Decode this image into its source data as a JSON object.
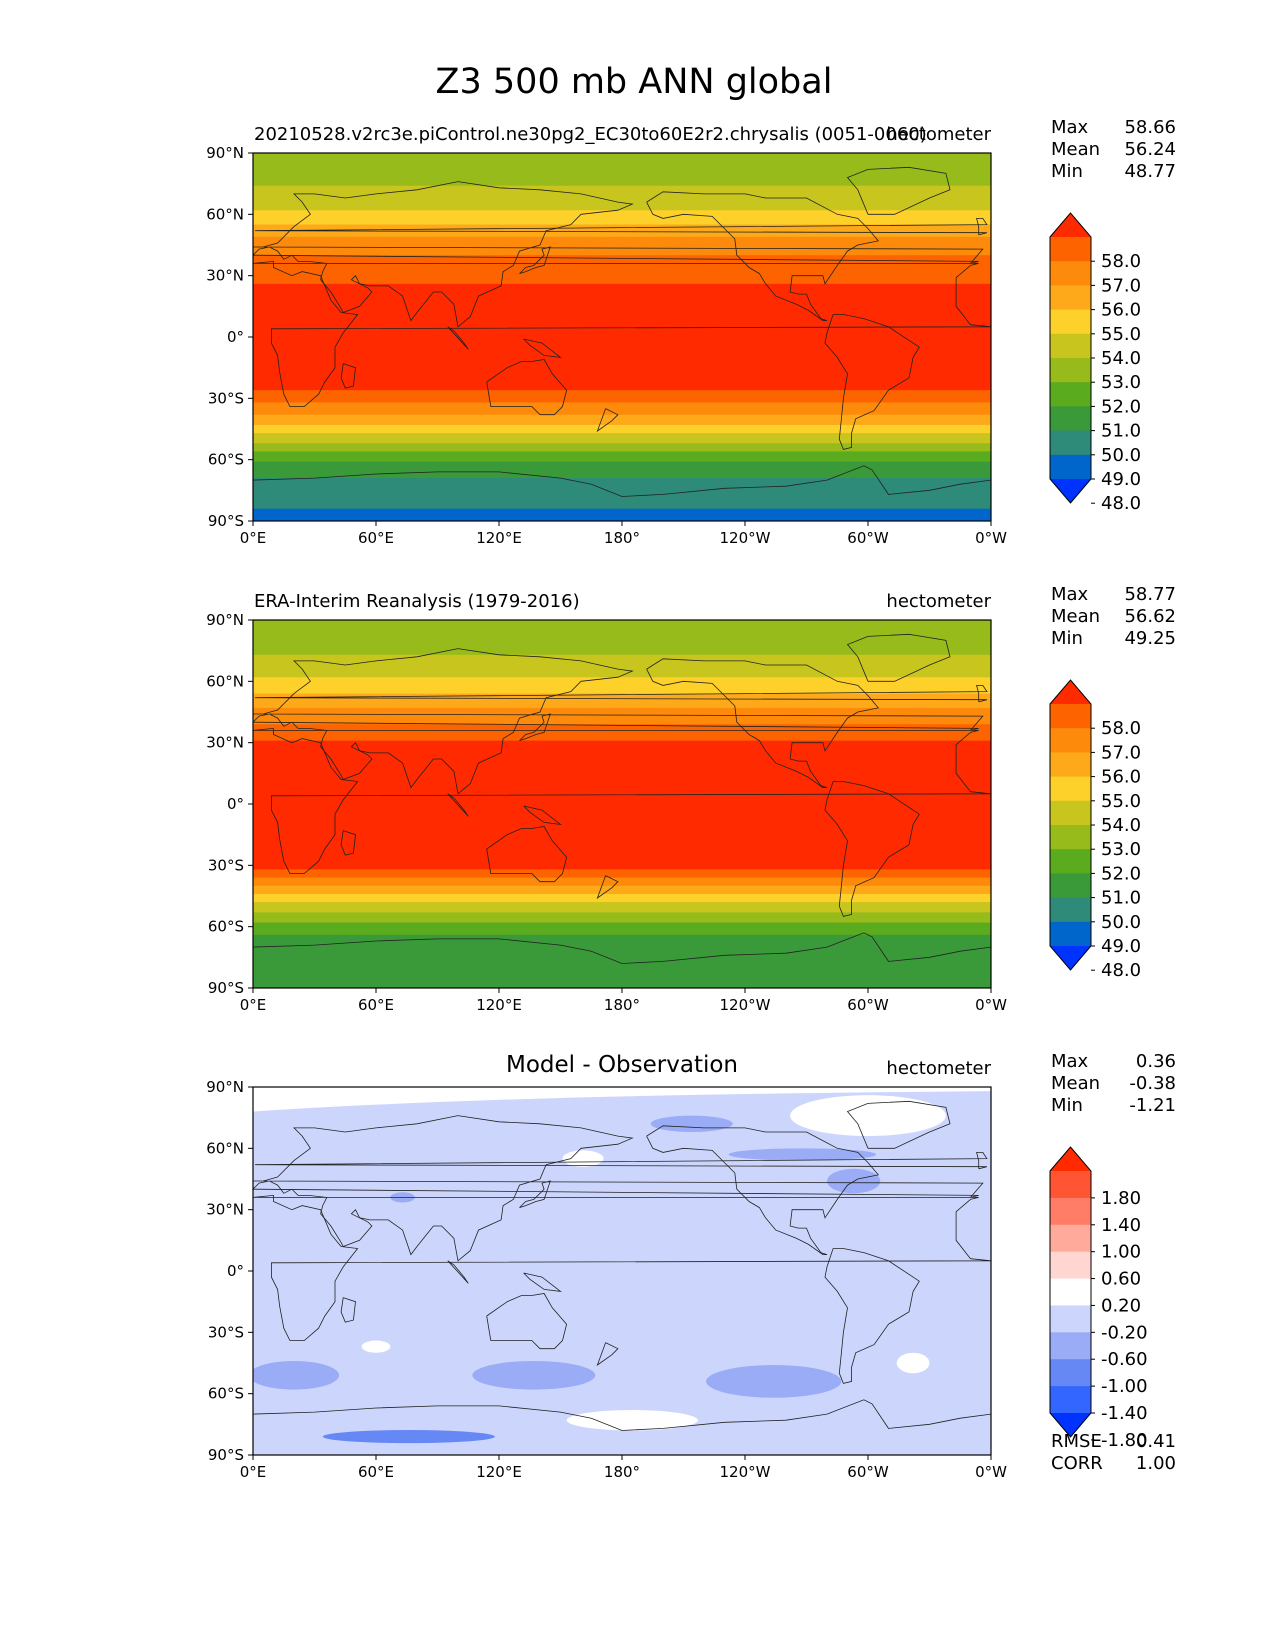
{
  "figure": {
    "title": "Z3 500 mb ANN global"
  },
  "colors": {
    "ref_levels": [
      "#0033ff",
      "#0066cc",
      "#2e8b7a",
      "#3a9a3a",
      "#5aab1e",
      "#96bb1a",
      "#c7c51e",
      "#fdd02a",
      "#fda91a",
      "#fd8a0a",
      "#fd6400",
      "#ff2a00"
    ],
    "diff_levels": [
      "#0033ff",
      "#3366ff",
      "#6688f5",
      "#9aacf6",
      "#ccd6fc",
      "#ffffff",
      "#ffd6d0",
      "#ffaa9a",
      "#ff7d66",
      "#ff5533",
      "#ff2a00"
    ]
  },
  "chart_data": [
    {
      "type": "heatmap",
      "panel": "test",
      "title_left": "20210528.v2rc3e.piControl.ne30pg2_EC30to60E2r2.chrysalis (0051-0060)",
      "title_right": "hectometer",
      "x_ticks": [
        "0°E",
        "60°E",
        "120°E",
        "180°",
        "120°W",
        "60°W",
        "0°W"
      ],
      "y_ticks": [
        "90°N",
        "60°N",
        "30°N",
        "0°",
        "30°S",
        "60°S",
        "90°S"
      ],
      "stats": [
        {
          "label": "Max",
          "value": "58.66"
        },
        {
          "label": "Mean",
          "value": "56.24"
        },
        {
          "label": "Min",
          "value": "48.77"
        }
      ],
      "colorbar_labels": [
        "58.0",
        "57.0",
        "56.0",
        "55.0",
        "54.0",
        "53.0",
        "52.0",
        "51.0",
        "50.0",
        "49.0",
        "48.0"
      ]
    },
    {
      "type": "heatmap",
      "panel": "reference",
      "title_left": "ERA-Interim Reanalysis (1979-2016)",
      "title_right": "hectometer",
      "x_ticks": [
        "0°E",
        "60°E",
        "120°E",
        "180°",
        "120°W",
        "60°W",
        "0°W"
      ],
      "y_ticks": [
        "90°N",
        "60°N",
        "30°N",
        "0°",
        "30°S",
        "60°S",
        "90°S"
      ],
      "stats": [
        {
          "label": "Max",
          "value": "58.77"
        },
        {
          "label": "Mean",
          "value": "56.62"
        },
        {
          "label": "Min",
          "value": "49.25"
        }
      ],
      "colorbar_labels": [
        "58.0",
        "57.0",
        "56.0",
        "55.0",
        "54.0",
        "53.0",
        "52.0",
        "51.0",
        "50.0",
        "49.0",
        "48.0"
      ]
    },
    {
      "type": "heatmap",
      "panel": "difference",
      "title_center": "Model - Observation",
      "title_right": "hectometer",
      "x_ticks": [
        "0°E",
        "60°E",
        "120°E",
        "180°",
        "120°W",
        "60°W",
        "0°W"
      ],
      "y_ticks": [
        "90°N",
        "60°N",
        "30°N",
        "0°",
        "30°S",
        "60°S",
        "90°S"
      ],
      "stats": [
        {
          "label": "Max",
          "value": "0.36"
        },
        {
          "label": "Mean",
          "value": "-0.38"
        },
        {
          "label": "Min",
          "value": "-1.21"
        }
      ],
      "colorbar_labels": [
        "1.80",
        "1.40",
        "1.00",
        "0.60",
        "0.20",
        "-0.20",
        "-0.60",
        "-1.00",
        "-1.40",
        "-1.80"
      ],
      "extra_stats": [
        {
          "label": "RMSE",
          "value": "0.41"
        },
        {
          "label": "CORR",
          "value": "1.00"
        }
      ]
    }
  ]
}
